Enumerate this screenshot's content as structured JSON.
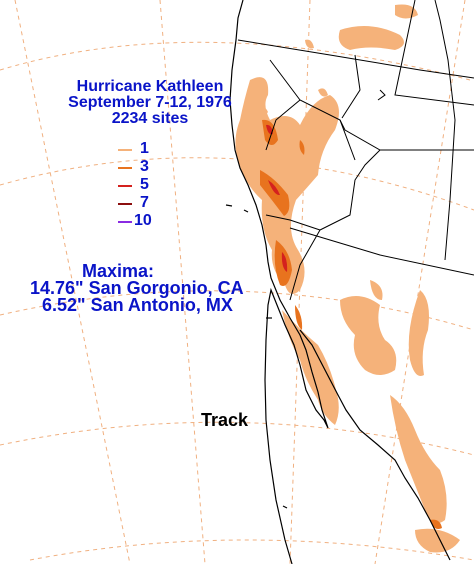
{
  "title": {
    "line1": "Hurricane Kathleen",
    "line2": "September 7-12, 1976",
    "line3": "2234 sites"
  },
  "legend": [
    {
      "label": "1",
      "color": "#f5b27a"
    },
    {
      "label": "3",
      "color": "#e8731e"
    },
    {
      "label": "5",
      "color": "#d4211e"
    },
    {
      "label": "7",
      "color": "#8c0f0f"
    },
    {
      "label": "10",
      "color": "#8a2be2"
    }
  ],
  "maxima": {
    "heading": "Maxima:",
    "line1": "14.76\" San Gorgonio, CA",
    "line2": "6.52\"  San Antonio, MX"
  },
  "track_label": "Track",
  "colors": {
    "text": "#0a14c8",
    "coast": "#000000",
    "graticule": "#f0b080",
    "rain_1": "#f5b27a",
    "rain_3": "#e8731e",
    "rain_5": "#d4211e"
  }
}
